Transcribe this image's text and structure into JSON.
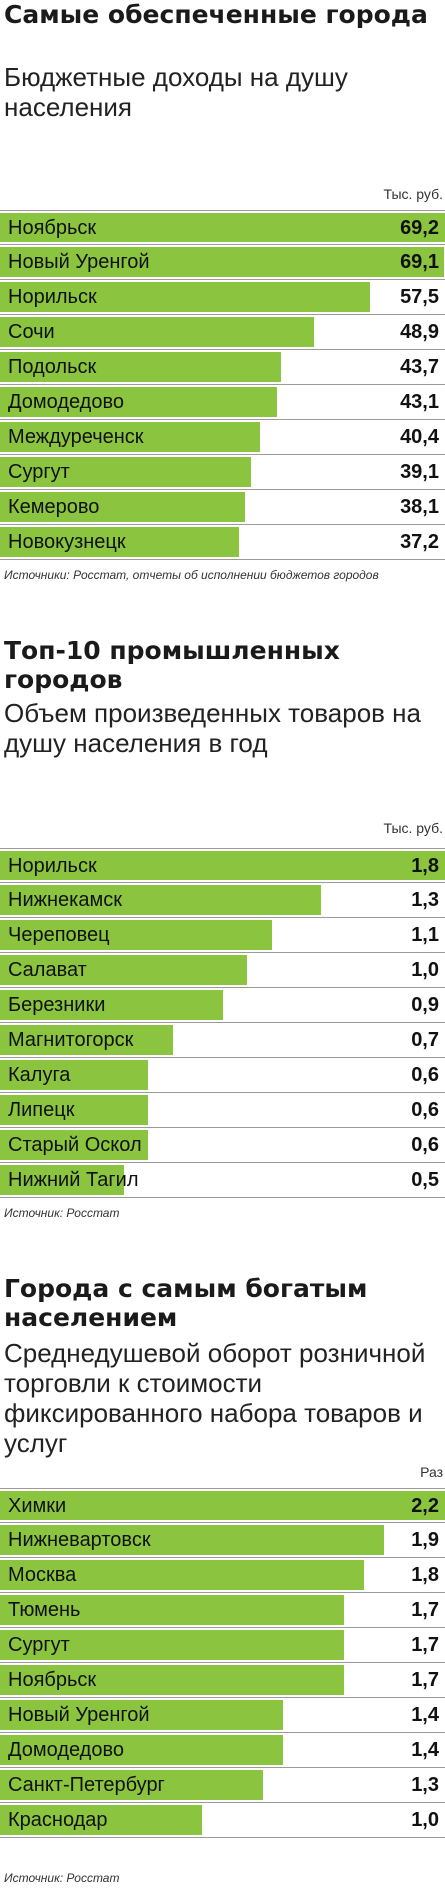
{
  "chart_data": [
    {
      "type": "bar",
      "title": "Самые обеспеченные города",
      "subtitle": "Бюджетные доходы на душу населения",
      "unit": "Тыс. руб.",
      "categories": [
        "Ноябрьск",
        "Новый Уренгой",
        "Норильск",
        "Сочи",
        "Подольск",
        "Домодедово",
        "Междуреченск",
        "Сургут",
        "Кемерово",
        "Новокузнецк"
      ],
      "values": [
        69.2,
        69.1,
        57.5,
        48.9,
        43.7,
        43.1,
        40.4,
        39.1,
        38.1,
        37.2
      ],
      "value_labels": [
        "69,2",
        "69,1",
        "57,5",
        "48,9",
        "43,7",
        "43,1",
        "40,4",
        "39,1",
        "38,1",
        "37,2"
      ],
      "source": "Источники: Росстат, отчеты об исполнении бюджетов городов",
      "color": "#8bc43f"
    },
    {
      "type": "bar",
      "title": "Топ-10 промышленных городов",
      "subtitle": "Объем произведенных товаров на душу населения в год",
      "unit": "Тыс. руб.",
      "categories": [
        "Норильск",
        "Нижнекамск",
        "Череповец",
        "Салават",
        "Березники",
        "Магнитогорск",
        "Калуга",
        "Липецк",
        "Старый Оскол",
        "Нижний Тагил"
      ],
      "values": [
        1.8,
        1.3,
        1.1,
        1.0,
        0.9,
        0.7,
        0.6,
        0.6,
        0.6,
        0.5
      ],
      "value_labels": [
        "1,8",
        "1,3",
        "1,1",
        "1,0",
        "0,9",
        "0,7",
        "0,6",
        "0,6",
        "0,6",
        "0,5"
      ],
      "source": "Источник: Росстат",
      "color": "#8bc43f"
    },
    {
      "type": "bar",
      "title": "Города с самым богатым населением",
      "subtitle": "Среднедушевой оборот розничной торговли к стоимости фиксированного набора товаров и услуг",
      "unit": "Раз",
      "categories": [
        "Химки",
        "Нижневартовск",
        "Москва",
        "Тюмень",
        "Сургут",
        "Ноябрьск",
        "Новый Уренгой",
        "Домодедово",
        "Санкт-Петербург",
        "Краснодар"
      ],
      "values": [
        2.2,
        1.9,
        1.8,
        1.7,
        1.7,
        1.7,
        1.4,
        1.4,
        1.3,
        1.0
      ],
      "value_labels": [
        "2,2",
        "1,9",
        "1,8",
        "1,7",
        "1,7",
        "1,7",
        "1,4",
        "1,4",
        "1,3",
        "1,0"
      ],
      "source": "Источник: Росстат",
      "color": "#8bc43f"
    }
  ]
}
